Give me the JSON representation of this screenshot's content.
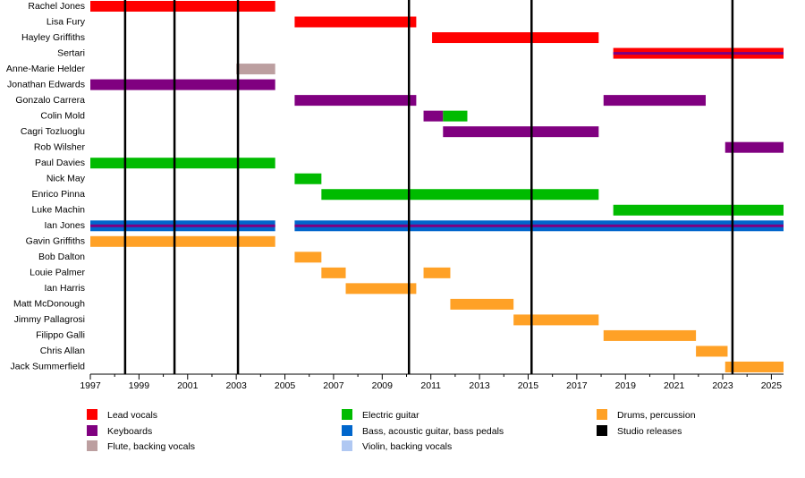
{
  "chart_data": {
    "type": "timeline",
    "xlim": [
      1997,
      2025.5
    ],
    "xticks": [
      1997,
      1999,
      2001,
      2003,
      2005,
      2007,
      2009,
      2011,
      2013,
      2015,
      2017,
      2019,
      2021,
      2023,
      2025
    ],
    "minor_xticks": [
      1998,
      2000,
      2002,
      2004,
      2006,
      2008,
      2010,
      2012,
      2014,
      2016,
      2018,
      2020,
      2022,
      2024
    ],
    "roles": [
      {
        "name": "Lead vocals",
        "color": "#ff0000"
      },
      {
        "name": "Keyboards",
        "color": "#800080"
      },
      {
        "name": "Flute, backing vocals",
        "color": "#bc9fa0"
      },
      {
        "name": "Electric guitar",
        "color": "#00bb00"
      },
      {
        "name": "Bass, acoustic guitar, bass pedals",
        "color": "#0066cc"
      },
      {
        "name": "Violin, backing vocals",
        "color": "#b0c8f2"
      },
      {
        "name": "Drums, percussion",
        "color": "#ffa126"
      }
    ],
    "releases": {
      "name": "Studio releases",
      "color": "#000000",
      "values": [
        1998.43,
        2000.46,
        2003.07,
        2010.1,
        2015.14,
        2023.4
      ]
    },
    "members": [
      {
        "name": "Rachel Jones",
        "bars": [
          {
            "start": 1997,
            "end": 2004.6,
            "role": "Lead vocals"
          }
        ]
      },
      {
        "name": "Lisa Fury",
        "bars": [
          {
            "start": 2005.4,
            "end": 2010.4,
            "role": "Lead vocals"
          }
        ]
      },
      {
        "name": "Hayley Griffiths",
        "bars": [
          {
            "start": 2011.05,
            "end": 2017.9,
            "role": "Lead vocals"
          }
        ]
      },
      {
        "name": "Sertari",
        "bars": [
          {
            "start": 2018.5,
            "end": 2025.5,
            "role": "Lead vocals",
            "stripe": "Keyboards"
          }
        ]
      },
      {
        "name": "Anne-Marie Helder",
        "bars": [
          {
            "start": 2003.0,
            "end": 2004.6,
            "role": "Flute, backing vocals"
          }
        ]
      },
      {
        "name": "Jonathan Edwards",
        "bars": [
          {
            "start": 1997,
            "end": 2004.6,
            "role": "Keyboards"
          }
        ]
      },
      {
        "name": "Gonzalo Carrera",
        "bars": [
          {
            "start": 2005.4,
            "end": 2010.4,
            "role": "Keyboards"
          },
          {
            "start": 2018.1,
            "end": 2022.3,
            "role": "Keyboards"
          }
        ]
      },
      {
        "name": "Colin Mold",
        "bars": [
          {
            "start": 2010.7,
            "end": 2011.5,
            "role": "Keyboards"
          },
          {
            "start": 2011.5,
            "end": 2012.5,
            "role": "Electric guitar"
          }
        ]
      },
      {
        "name": "Cagri Tozluoglu",
        "bars": [
          {
            "start": 2011.5,
            "end": 2017.9,
            "role": "Keyboards"
          }
        ]
      },
      {
        "name": "Rob Wilsher",
        "bars": [
          {
            "start": 2023.1,
            "end": 2025.5,
            "role": "Keyboards"
          }
        ]
      },
      {
        "name": "Paul Davies",
        "bars": [
          {
            "start": 1997,
            "end": 2004.6,
            "role": "Electric guitar"
          }
        ]
      },
      {
        "name": "Nick May",
        "bars": [
          {
            "start": 2005.4,
            "end": 2006.5,
            "role": "Electric guitar"
          }
        ]
      },
      {
        "name": "Enrico Pinna",
        "bars": [
          {
            "start": 2006.5,
            "end": 2017.9,
            "role": "Electric guitar"
          }
        ]
      },
      {
        "name": "Luke Machin",
        "bars": [
          {
            "start": 2018.5,
            "end": 2025.5,
            "role": "Electric guitar"
          }
        ]
      },
      {
        "name": "Ian Jones",
        "bars": [
          {
            "start": 1997,
            "end": 2004.6,
            "role": "Bass, acoustic guitar, bass pedals",
            "stripe": "Keyboards"
          },
          {
            "start": 2005.4,
            "end": 2025.5,
            "role": "Bass, acoustic guitar, bass pedals",
            "stripe": "Keyboards"
          }
        ]
      },
      {
        "name": "Gavin Griffiths",
        "bars": [
          {
            "start": 1997,
            "end": 2004.6,
            "role": "Drums, percussion"
          }
        ]
      },
      {
        "name": "Bob Dalton",
        "bars": [
          {
            "start": 2005.4,
            "end": 2006.5,
            "role": "Drums, percussion"
          }
        ]
      },
      {
        "name": "Louie Palmer",
        "bars": [
          {
            "start": 2006.5,
            "end": 2007.5,
            "role": "Drums, percussion"
          },
          {
            "start": 2010.7,
            "end": 2011.8,
            "role": "Drums, percussion"
          }
        ]
      },
      {
        "name": "Ian Harris",
        "bars": [
          {
            "start": 2007.5,
            "end": 2010.4,
            "role": "Drums, percussion"
          }
        ]
      },
      {
        "name": "Matt McDonough",
        "bars": [
          {
            "start": 2011.8,
            "end": 2014.4,
            "role": "Drums, percussion"
          }
        ]
      },
      {
        "name": "Jimmy Pallagrosi",
        "bars": [
          {
            "start": 2014.4,
            "end": 2017.9,
            "role": "Drums, percussion"
          }
        ]
      },
      {
        "name": "Filippo Galli",
        "bars": [
          {
            "start": 2018.1,
            "end": 2021.9,
            "role": "Drums, percussion"
          }
        ]
      },
      {
        "name": "Chris Allan",
        "bars": [
          {
            "start": 2021.9,
            "end": 2023.2,
            "role": "Drums, percussion"
          }
        ]
      },
      {
        "name": "Jack Summerfield",
        "bars": [
          {
            "start": 2023.1,
            "end": 2025.5,
            "role": "Drums, percussion"
          }
        ]
      }
    ]
  }
}
